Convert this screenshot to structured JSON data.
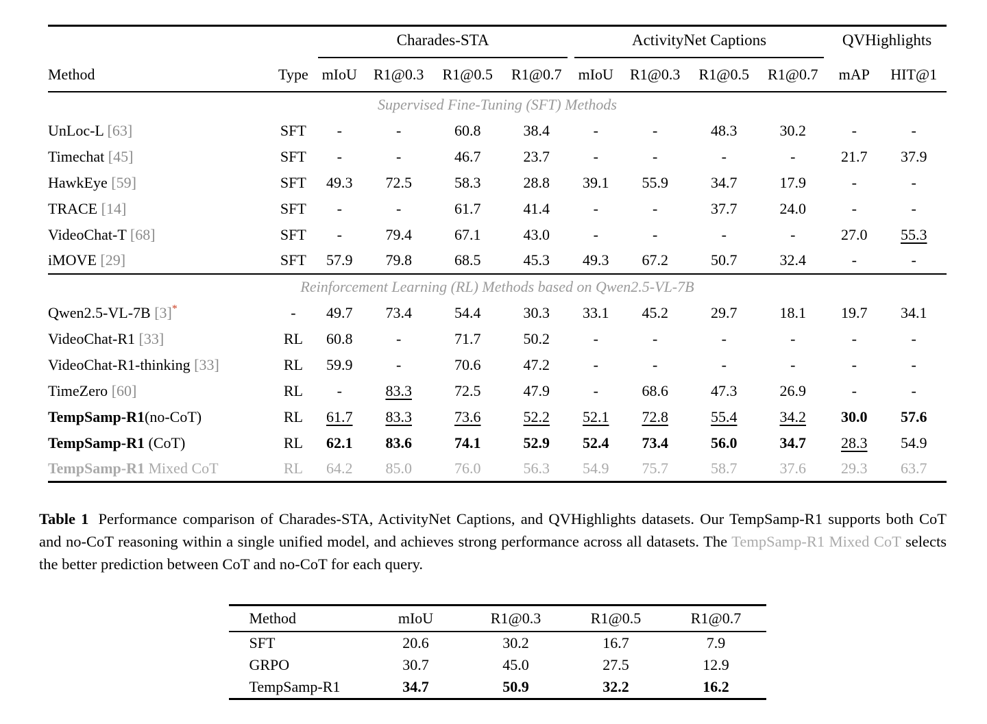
{
  "colors": {
    "citation": "#8a8a8a",
    "star": "#cc4125",
    "section_title": "#9a9a9a",
    "muted": "#aaaaaa"
  },
  "table1": {
    "groups": [
      {
        "label": "Charades-STA",
        "span": 4,
        "rule": true
      },
      {
        "label": "ActivityNet Captions",
        "span": 4,
        "rule": true
      },
      {
        "label": "QVHighlights",
        "span": 2,
        "rule": false
      }
    ],
    "method_header": "Method",
    "type_header": "Type",
    "metric_headers": [
      "mIoU",
      "R1@0.3",
      "R1@0.5",
      "R1@0.7",
      "mIoU",
      "R1@0.3",
      "R1@0.5",
      "R1@0.7",
      "mAP",
      "HIT@1"
    ],
    "sections": [
      {
        "title": "Supervised Fine-Tuning (SFT) Methods",
        "rows": [
          {
            "method": [
              {
                "t": "UnLoc-L "
              },
              {
                "t": "[63]",
                "s": "cite"
              }
            ],
            "type": "SFT",
            "cells": [
              "-",
              "-",
              "60.8",
              "38.4",
              "-",
              "-",
              "48.3",
              "30.2",
              "-",
              "-"
            ]
          },
          {
            "method": [
              {
                "t": "Timechat "
              },
              {
                "t": "[45]",
                "s": "cite"
              }
            ],
            "type": "SFT",
            "cells": [
              "-",
              "-",
              "46.7",
              "23.7",
              "-",
              "-",
              "-",
              "-",
              "21.7",
              "37.9"
            ]
          },
          {
            "method": [
              {
                "t": "HawkEye "
              },
              {
                "t": "[59]",
                "s": "cite"
              }
            ],
            "type": "SFT",
            "cells": [
              "49.3",
              "72.5",
              "58.3",
              "28.8",
              "39.1",
              "55.9",
              "34.7",
              "17.9",
              "-",
              "-"
            ]
          },
          {
            "method": [
              {
                "t": "TRACE "
              },
              {
                "t": "[14]",
                "s": "cite"
              }
            ],
            "type": "SFT",
            "cells": [
              "-",
              "-",
              "61.7",
              "41.4",
              "-",
              "-",
              "37.7",
              "24.0",
              "-",
              "-"
            ]
          },
          {
            "method": [
              {
                "t": "VideoChat-T "
              },
              {
                "t": "[68]",
                "s": "cite"
              }
            ],
            "type": "SFT",
            "cells": [
              "-",
              "79.4",
              "67.1",
              "43.0",
              "-",
              "-",
              "-",
              "-",
              "27.0",
              {
                "t": "55.3",
                "s": "underline"
              }
            ]
          },
          {
            "method": [
              {
                "t": "iMOVE "
              },
              {
                "t": "[29]",
                "s": "cite"
              }
            ],
            "type": "SFT",
            "cells": [
              "57.9",
              "79.8",
              "68.5",
              "45.3",
              "49.3",
              "67.2",
              "50.7",
              "32.4",
              "-",
              "-"
            ]
          }
        ]
      },
      {
        "title": "Reinforcement Learning (RL) Methods based on Qwen2.5-VL-7B",
        "rows": [
          {
            "method": [
              {
                "t": "Qwen2.5-VL-7B "
              },
              {
                "t": "[3]",
                "s": "cite"
              },
              {
                "t": "*",
                "s": "star"
              }
            ],
            "type": "-",
            "cells": [
              "49.7",
              "73.4",
              "54.4",
              "30.3",
              "33.1",
              "45.2",
              "29.7",
              "18.1",
              "19.7",
              "34.1"
            ]
          },
          {
            "method": [
              {
                "t": "VideoChat-R1 "
              },
              {
                "t": "[33]",
                "s": "cite"
              }
            ],
            "type": "RL",
            "cells": [
              "60.8",
              "-",
              "71.7",
              "50.2",
              "-",
              "-",
              "-",
              "-",
              "-",
              "-"
            ]
          },
          {
            "method": [
              {
                "t": "VideoChat-R1-thinking "
              },
              {
                "t": "[33]",
                "s": "cite"
              }
            ],
            "type": "RL",
            "cells": [
              "59.9",
              "-",
              "70.6",
              "47.2",
              "-",
              "-",
              "-",
              "-",
              "-",
              "-"
            ]
          },
          {
            "method": [
              {
                "t": "TimeZero "
              },
              {
                "t": "[60]",
                "s": "cite"
              }
            ],
            "type": "RL",
            "cells": [
              "-",
              {
                "t": "83.3",
                "s": "underline"
              },
              "72.5",
              "47.9",
              "-",
              "68.6",
              "47.3",
              "26.9",
              "-",
              "-"
            ]
          },
          {
            "method": [
              {
                "t": "TempSamp-R1",
                "s": "bold"
              },
              {
                "t": "(no-CoT)"
              }
            ],
            "type": "RL",
            "cells": [
              {
                "t": "61.7",
                "s": "underline"
              },
              {
                "t": "83.3",
                "s": "underline"
              },
              {
                "t": "73.6",
                "s": "underline"
              },
              {
                "t": "52.2",
                "s": "underline"
              },
              {
                "t": "52.1",
                "s": "underline"
              },
              {
                "t": "72.8",
                "s": "underline"
              },
              {
                "t": "55.4",
                "s": "underline"
              },
              {
                "t": "34.2",
                "s": "underline"
              },
              {
                "t": "30.0",
                "s": "bold"
              },
              {
                "t": "57.6",
                "s": "bold"
              }
            ]
          },
          {
            "method": [
              {
                "t": "TempSamp-R1",
                "s": "bold"
              },
              {
                "t": " (CoT)"
              }
            ],
            "type": "RL",
            "cells": [
              {
                "t": "62.1",
                "s": "bold"
              },
              {
                "t": "83.6",
                "s": "bold"
              },
              {
                "t": "74.1",
                "s": "bold"
              },
              {
                "t": "52.9",
                "s": "bold"
              },
              {
                "t": "52.4",
                "s": "bold"
              },
              {
                "t": "73.4",
                "s": "bold"
              },
              {
                "t": "56.0",
                "s": "bold"
              },
              {
                "t": "34.7",
                "s": "bold"
              },
              {
                "t": "28.3",
                "s": "underline"
              },
              "54.9"
            ]
          },
          {
            "method": [
              {
                "t": "TempSamp-R1",
                "s": "graybold"
              },
              {
                "t": " Mixed CoT",
                "s": "gray"
              }
            ],
            "type": "RL",
            "row_gray": true,
            "cells": [
              "64.2",
              "85.0",
              "76.0",
              "56.3",
              "54.9",
              "75.7",
              "58.7",
              "37.6",
              "29.3",
              "63.7"
            ]
          }
        ]
      }
    ]
  },
  "caption": {
    "label": "Table 1",
    "text_before": "Performance comparison of Charades-STA, ActivityNet Captions, and QVHighlights datasets. Our TempSamp-R1 supports both CoT and no-CoT reasoning within a single unified model, and achieves strong performance across all datasets. The ",
    "highlight": "TempSamp-R1 Mixed CoT",
    "text_after": " selects the better prediction between CoT and no-CoT for each query."
  },
  "table2": {
    "headers": [
      "Method",
      "mIoU",
      "R1@0.3",
      "R1@0.5",
      "R1@0.7"
    ],
    "rows": [
      {
        "method": "SFT",
        "cells": [
          "20.6",
          "30.2",
          "16.7",
          "7.9"
        ]
      },
      {
        "method": "GRPO",
        "cells": [
          "30.7",
          "45.0",
          "27.5",
          "12.9"
        ]
      },
      {
        "method": "TempSamp-R1",
        "cells": [
          {
            "t": "34.7",
            "s": "bold"
          },
          {
            "t": "50.9",
            "s": "bold"
          },
          {
            "t": "32.2",
            "s": "bold"
          },
          {
            "t": "16.2",
            "s": "bold"
          }
        ]
      }
    ]
  }
}
